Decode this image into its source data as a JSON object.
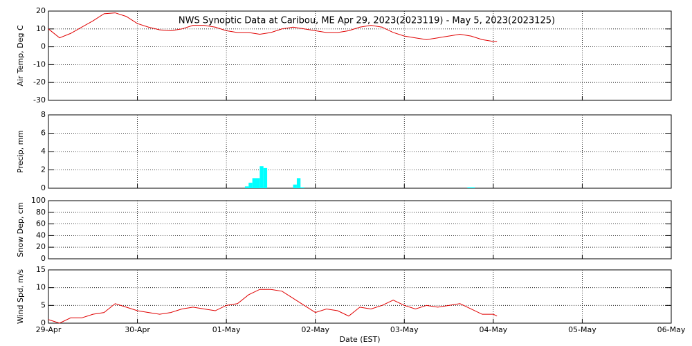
{
  "chart_data": [
    {
      "type": "line",
      "title": "NWS Synoptic Data at Caribou, ME   Apr 29, 2023(2023119) - May  5, 2023(2023125)",
      "ylabel": "Air Temp, Deg C",
      "color": "#e00000",
      "grid": true,
      "xlim": [
        0,
        168
      ],
      "xticks": [
        0,
        24,
        48,
        72,
        96,
        120,
        144,
        168
      ],
      "ylim": [
        -30,
        20
      ],
      "yticks": [
        -30,
        -20,
        -10,
        0,
        10,
        20
      ],
      "x": [
        0,
        3,
        6,
        9,
        12,
        15,
        18,
        21,
        24,
        27,
        30,
        33,
        36,
        39,
        42,
        45,
        48,
        51,
        54,
        57,
        60,
        63,
        66,
        69,
        72,
        75,
        78,
        81,
        84,
        87,
        90,
        93,
        96,
        99,
        102,
        105,
        108,
        111,
        114,
        117,
        120,
        121
      ],
      "values": [
        10,
        5,
        7.5,
        11,
        14.5,
        18.5,
        19,
        17,
        13,
        11,
        9.5,
        9,
        10,
        12,
        12,
        11,
        9,
        8,
        8,
        7,
        8,
        10,
        11,
        10,
        9,
        8,
        8,
        9,
        11,
        12,
        11,
        8,
        6,
        5,
        4,
        5,
        6,
        7,
        6,
        4,
        3,
        3
      ]
    },
    {
      "type": "bar",
      "ylabel": "Precip, mm",
      "color": "#00ffff",
      "grid": true,
      "xlim": [
        0,
        168
      ],
      "xticks": [
        0,
        24,
        48,
        72,
        96,
        120,
        144,
        168
      ],
      "ylim": [
        0,
        8
      ],
      "yticks": [
        0,
        2,
        4,
        6,
        8
      ],
      "x": [
        53,
        54,
        55,
        56,
        57,
        58,
        66,
        67,
        68,
        113,
        114
      ],
      "values": [
        0.2,
        0.6,
        1.1,
        1.1,
        2.4,
        2.2,
        0.4,
        1.1,
        0.1,
        0.1,
        0.1
      ]
    },
    {
      "type": "line",
      "ylabel": "Snow Dep, cm",
      "color": "#e00000",
      "grid": true,
      "xlim": [
        0,
        168
      ],
      "xticks": [
        0,
        24,
        48,
        72,
        96,
        120,
        144,
        168
      ],
      "ylim": [
        0,
        100
      ],
      "yticks": [
        0,
        20,
        40,
        60,
        80,
        100
      ],
      "x": [],
      "values": []
    },
    {
      "type": "line",
      "ylabel": "Wind Spd, m/s",
      "xlabel": "Date (EST)",
      "color": "#e00000",
      "grid": true,
      "xlim": [
        0,
        168
      ],
      "xticks": [
        {
          "value": 0,
          "label": "29-Apr"
        },
        {
          "value": 24,
          "label": "30-Apr"
        },
        {
          "value": 48,
          "label": "01-May"
        },
        {
          "value": 72,
          "label": "02-May"
        },
        {
          "value": 96,
          "label": "03-May"
        },
        {
          "value": 120,
          "label": "04-May"
        },
        {
          "value": 144,
          "label": "05-May"
        },
        {
          "value": 168,
          "label": "06-May"
        }
      ],
      "ylim": [
        0,
        15
      ],
      "yticks": [
        0,
        5,
        10,
        15
      ],
      "x": [
        0,
        3,
        6,
        9,
        12,
        15,
        18,
        21,
        24,
        27,
        30,
        33,
        36,
        39,
        42,
        45,
        48,
        51,
        54,
        57,
        60,
        63,
        66,
        69,
        72,
        75,
        78,
        81,
        84,
        87,
        90,
        93,
        96,
        99,
        102,
        105,
        108,
        111,
        114,
        117,
        120,
        121
      ],
      "values": [
        1,
        0,
        1.5,
        1.5,
        2.5,
        3,
        5.5,
        4.5,
        3.5,
        3,
        2.5,
        3,
        4,
        4.5,
        4,
        3.5,
        5,
        5.5,
        8,
        9.5,
        9.5,
        9,
        7,
        5,
        3,
        4,
        3.5,
        2,
        4.5,
        4,
        5,
        6.5,
        5,
        4,
        5,
        4.5,
        5,
        5.5,
        4,
        2.5,
        2.5,
        2
      ]
    }
  ]
}
